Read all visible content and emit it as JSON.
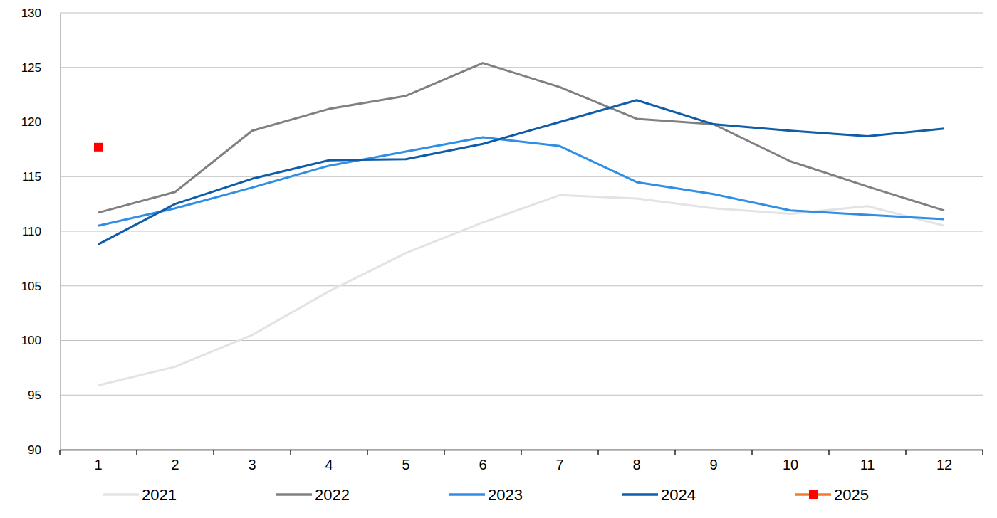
{
  "chart_data": {
    "type": "line",
    "categories": [
      "1",
      "2",
      "3",
      "4",
      "5",
      "6",
      "7",
      "8",
      "9",
      "10",
      "11",
      "12"
    ],
    "series": [
      {
        "name": "2021",
        "color": "#e3e3e3",
        "values": [
          95.9,
          97.6,
          100.5,
          104.5,
          108.0,
          110.8,
          113.3,
          113.0,
          112.1,
          111.6,
          112.3,
          110.5
        ]
      },
      {
        "name": "2022",
        "color": "#808080",
        "values": [
          111.7,
          113.6,
          119.2,
          121.2,
          122.4,
          125.4,
          123.2,
          120.3,
          119.8,
          116.4,
          114.1,
          111.9
        ]
      },
      {
        "name": "2023",
        "color": "#2f8ee5",
        "values": [
          110.5,
          112.1,
          114.0,
          116.0,
          117.3,
          118.6,
          117.8,
          114.5,
          113.4,
          111.9,
          111.5,
          111.1
        ]
      },
      {
        "name": "2024",
        "color": "#0f5ca8",
        "values": [
          108.8,
          112.5,
          114.8,
          116.5,
          116.6,
          118.0,
          120.0,
          122.0,
          119.8,
          119.2,
          118.7,
          119.4
        ]
      },
      {
        "name": "2025",
        "color": "#ff0000",
        "marker": "square",
        "values": [
          117.7,
          null,
          null,
          null,
          null,
          null,
          null,
          null,
          null,
          null,
          null,
          null
        ]
      }
    ],
    "ylim": [
      90,
      130
    ],
    "yticks": [
      90,
      95,
      100,
      105,
      110,
      115,
      120,
      125,
      130
    ],
    "grid": true,
    "legend": "bottom"
  }
}
